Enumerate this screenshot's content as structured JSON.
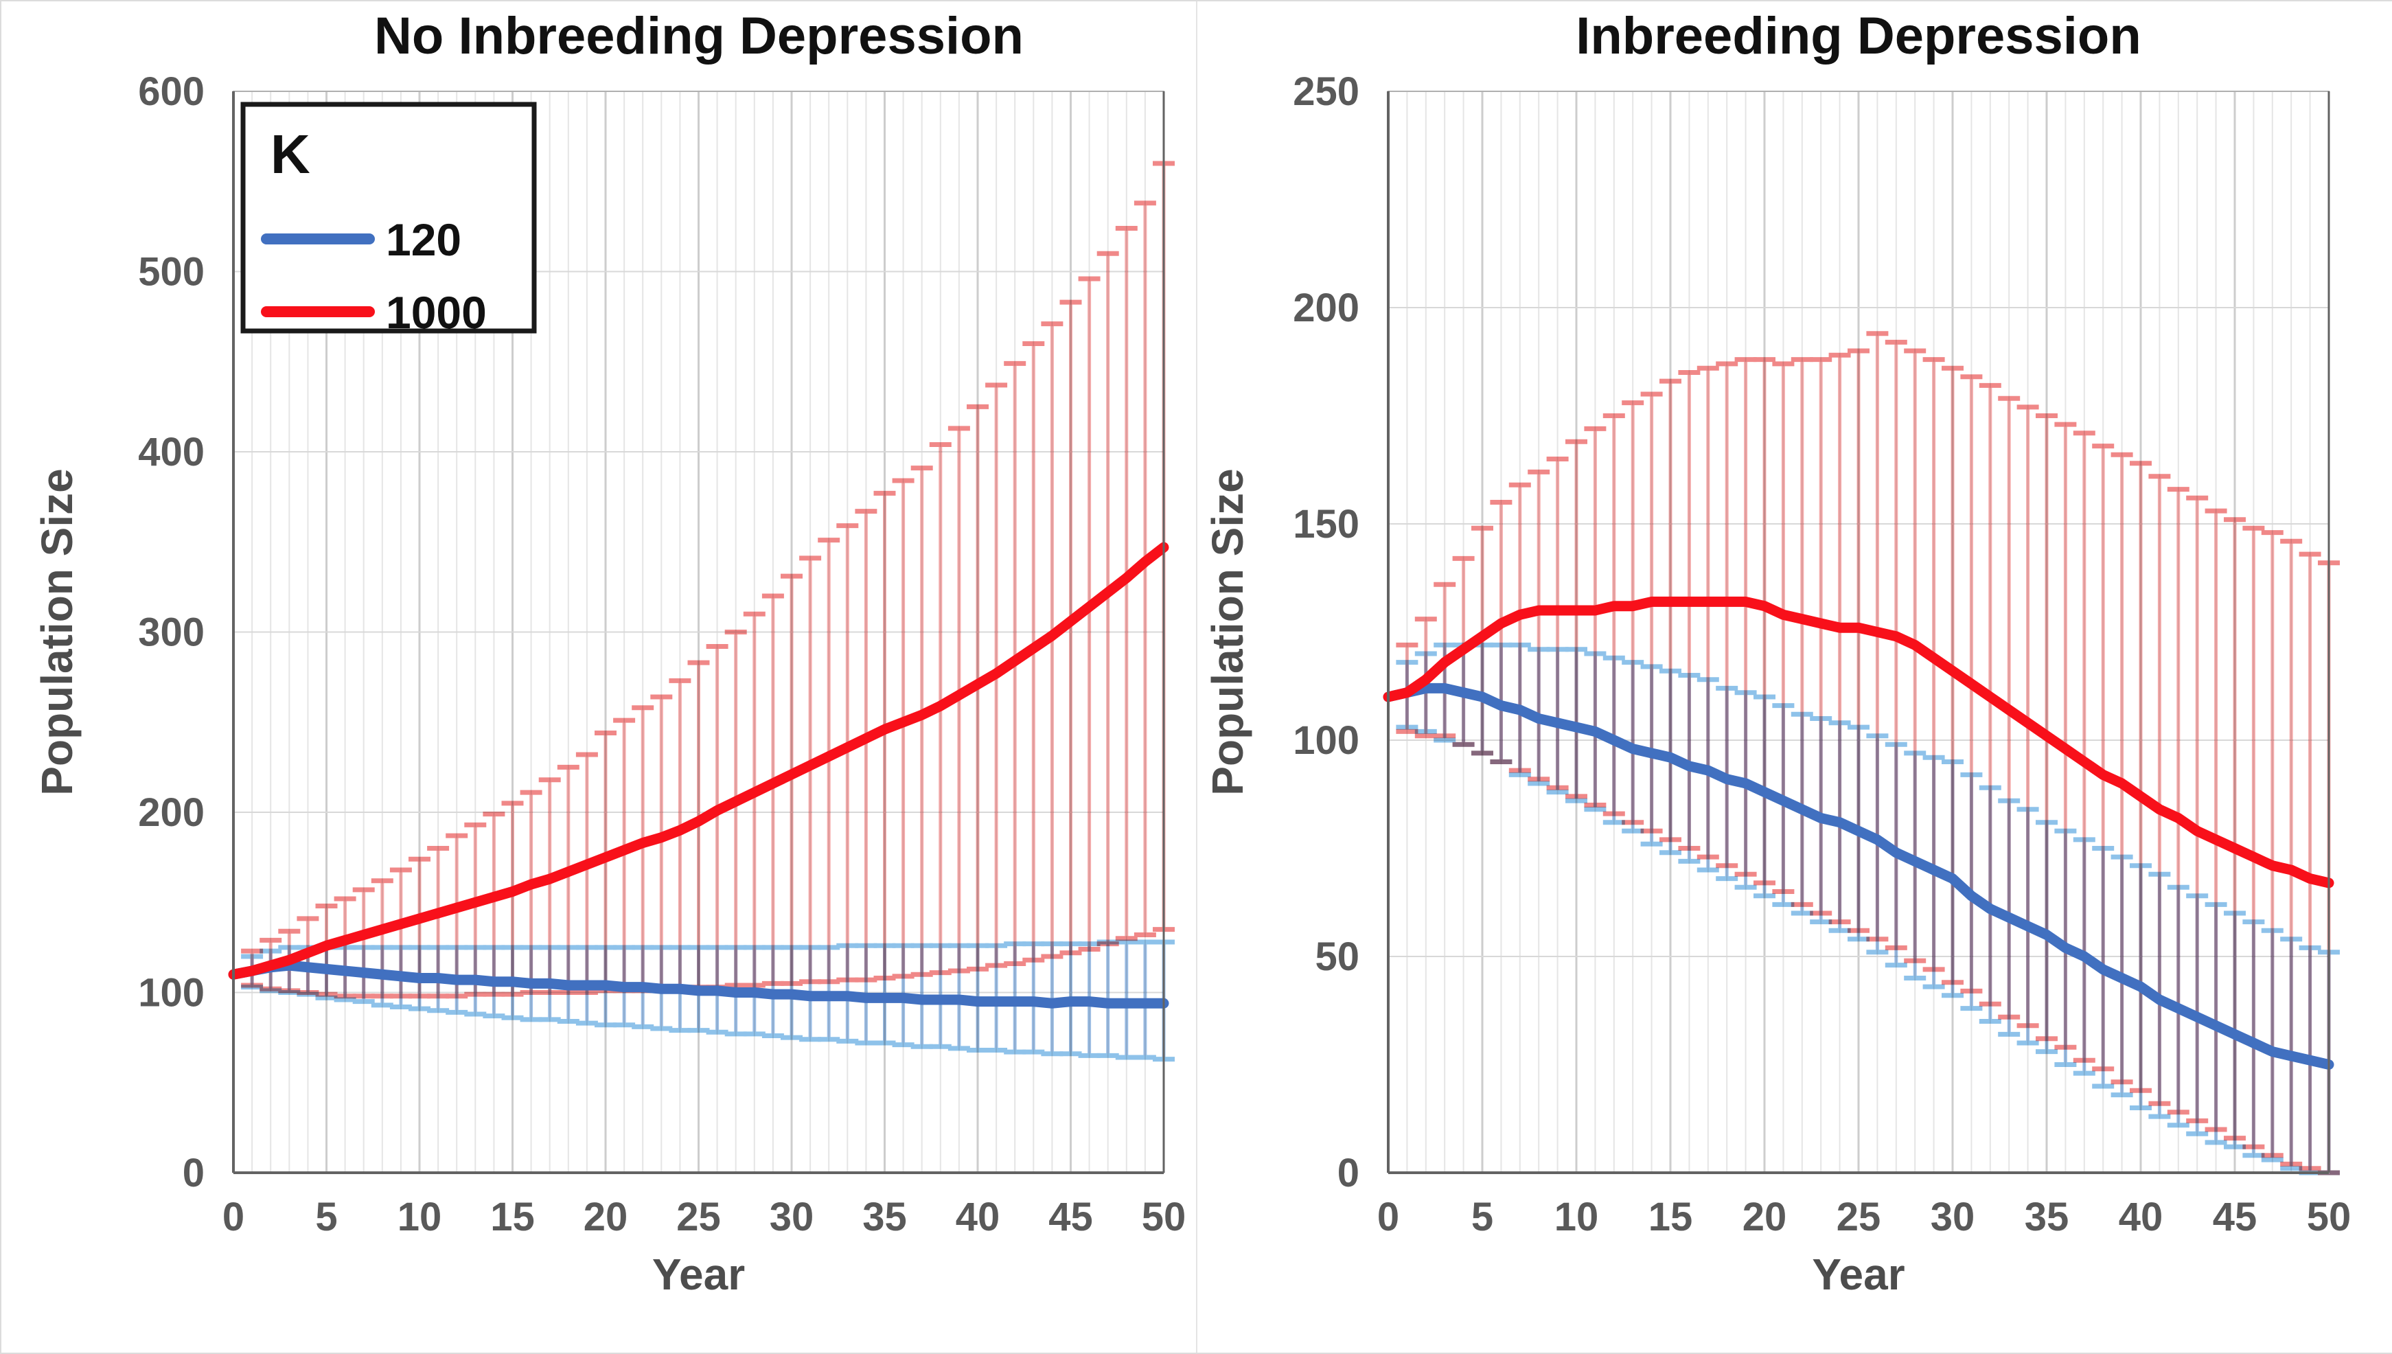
{
  "figure": {
    "background": "#FFFFFF",
    "panel_border": "#DCDCDC"
  },
  "colors": {
    "blue_line": "#4170C0",
    "red_line": "#F8101A",
    "blue_err_shaft": "#9DBFE6",
    "blue_err_cap": "#8EC2EA",
    "red_err_shaft": "#F6ACAC",
    "red_err_cap": "#F08888",
    "grid_minor": "#E5E5E5",
    "grid_major": "#CDCDCD",
    "grid_horizontal": "#D8D8D8",
    "frame_light": "#B0B0B0",
    "axis_dark": "#636363",
    "tick_text": "#595959",
    "axis_label_text": "#4D4D4D",
    "title_text": "#111111",
    "legend_border": "#1A1A1A"
  },
  "legend": {
    "title": "K",
    "items": [
      {
        "label": "120",
        "color_key": "blue_line"
      },
      {
        "label": "1000",
        "color_key": "red_line"
      }
    ]
  },
  "years": [
    0,
    1,
    2,
    3,
    4,
    5,
    6,
    7,
    8,
    9,
    10,
    11,
    12,
    13,
    14,
    15,
    16,
    17,
    18,
    19,
    20,
    21,
    22,
    23,
    24,
    25,
    26,
    27,
    28,
    29,
    30,
    31,
    32,
    33,
    34,
    35,
    36,
    37,
    38,
    39,
    40,
    41,
    42,
    43,
    44,
    45,
    46,
    47,
    48,
    49,
    50
  ],
  "chart_data": [
    {
      "type": "line",
      "title": "No Inbreeding Depression",
      "xlabel": "Year",
      "ylabel": "Population Size",
      "xlim": [
        0,
        50
      ],
      "ylim": [
        0,
        600
      ],
      "x_ticks": [
        0,
        5,
        10,
        15,
        20,
        25,
        30,
        35,
        40,
        45,
        50
      ],
      "y_ticks": [
        0,
        100,
        200,
        300,
        400,
        500,
        600
      ],
      "grid": true,
      "legend_position": "upper-left-inside",
      "error_bars": true,
      "series": [
        {
          "name": "120",
          "color_key": "blue",
          "y": [
            110,
            112,
            114,
            115,
            114,
            113,
            112,
            111,
            110,
            109,
            108,
            108,
            107,
            107,
            106,
            106,
            105,
            105,
            104,
            104,
            104,
            103,
            103,
            102,
            102,
            101,
            101,
            100,
            100,
            99,
            99,
            98,
            98,
            98,
            97,
            97,
            97,
            96,
            96,
            96,
            95,
            95,
            95,
            95,
            94,
            95,
            95,
            94,
            94,
            94,
            94
          ],
          "hi": [
            null,
            120,
            123,
            125,
            125,
            125,
            125,
            125,
            125,
            125,
            125,
            125,
            125,
            125,
            125,
            125,
            125,
            125,
            125,
            125,
            125,
            125,
            125,
            125,
            125,
            125,
            125,
            125,
            125,
            125,
            125,
            125,
            125,
            126,
            126,
            126,
            126,
            126,
            126,
            126,
            126,
            126,
            127,
            127,
            127,
            127,
            127,
            128,
            128,
            128,
            128
          ],
          "lo": [
            null,
            103,
            101,
            100,
            99,
            97,
            96,
            95,
            93,
            92,
            91,
            90,
            89,
            88,
            87,
            86,
            85,
            85,
            84,
            83,
            82,
            82,
            81,
            80,
            79,
            79,
            78,
            77,
            77,
            76,
            75,
            74,
            74,
            73,
            72,
            72,
            71,
            70,
            70,
            69,
            68,
            68,
            67,
            67,
            66,
            66,
            65,
            65,
            64,
            64,
            63
          ]
        },
        {
          "name": "1000",
          "color_key": "red",
          "y": [
            110,
            112,
            115,
            118,
            122,
            126,
            129,
            132,
            135,
            138,
            141,
            144,
            147,
            150,
            153,
            156,
            160,
            163,
            167,
            171,
            175,
            179,
            183,
            186,
            190,
            195,
            201,
            206,
            211,
            216,
            221,
            226,
            231,
            236,
            241,
            246,
            250,
            254,
            259,
            265,
            271,
            277,
            284,
            291,
            298,
            306,
            314,
            322,
            330,
            339,
            347
          ],
          "hi": [
            null,
            123,
            129,
            134,
            141,
            148,
            152,
            157,
            162,
            168,
            174,
            180,
            187,
            193,
            199,
            205,
            211,
            218,
            225,
            232,
            244,
            251,
            258,
            264,
            273,
            283,
            292,
            300,
            310,
            320,
            331,
            341,
            351,
            359,
            367,
            377,
            384,
            391,
            404,
            413,
            425,
            437,
            449,
            460,
            471,
            483,
            496,
            510,
            524,
            538,
            560
          ],
          "lo": [
            null,
            104,
            102,
            101,
            100,
            99,
            98,
            98,
            98,
            98,
            98,
            98,
            98,
            99,
            99,
            99,
            100,
            100,
            100,
            100,
            101,
            101,
            101,
            102,
            102,
            103,
            103,
            104,
            104,
            105,
            105,
            106,
            106,
            107,
            107,
            108,
            109,
            110,
            111,
            112,
            113,
            115,
            116,
            118,
            120,
            122,
            124,
            127,
            130,
            132,
            135
          ]
        }
      ]
    },
    {
      "type": "line",
      "title": "Inbreeding Depression",
      "xlabel": "Year",
      "ylabel": "Population Size",
      "xlim": [
        0,
        50
      ],
      "ylim": [
        0,
        250
      ],
      "x_ticks": [
        0,
        5,
        10,
        15,
        20,
        25,
        30,
        35,
        40,
        45,
        50
      ],
      "y_ticks": [
        0,
        50,
        100,
        150,
        200,
        250
      ],
      "grid": true,
      "legend_position": "none",
      "error_bars": true,
      "series": [
        {
          "name": "120",
          "color_key": "blue",
          "y": [
            110,
            111,
            112,
            112,
            111,
            110,
            108,
            107,
            105,
            104,
            103,
            102,
            100,
            98,
            97,
            96,
            94,
            93,
            91,
            90,
            88,
            86,
            84,
            82,
            81,
            79,
            77,
            74,
            72,
            70,
            68,
            64,
            61,
            59,
            57,
            55,
            52,
            50,
            47,
            45,
            43,
            40,
            38,
            36,
            34,
            32,
            30,
            28,
            27,
            26,
            25
          ],
          "hi": [
            null,
            118,
            120,
            122,
            122,
            122,
            122,
            122,
            121,
            121,
            121,
            120,
            119,
            118,
            117,
            116,
            115,
            114,
            112,
            111,
            110,
            108,
            106,
            105,
            104,
            103,
            101,
            99,
            97,
            96,
            95,
            92,
            89,
            86,
            84,
            81,
            79,
            77,
            75,
            73,
            71,
            69,
            66,
            64,
            62,
            60,
            58,
            56,
            54,
            52,
            51
          ],
          "lo": [
            null,
            103,
            102,
            100,
            99,
            97,
            95,
            92,
            90,
            88,
            86,
            84,
            81,
            79,
            76,
            74,
            72,
            70,
            68,
            66,
            64,
            62,
            60,
            58,
            56,
            54,
            51,
            48,
            45,
            43,
            41,
            38,
            35,
            32,
            30,
            28,
            25,
            23,
            20,
            18,
            15,
            13,
            11,
            9,
            7,
            6,
            4,
            3,
            1,
            0,
            0
          ]
        },
        {
          "name": "1000",
          "color_key": "red",
          "y": [
            110,
            111,
            114,
            118,
            121,
            124,
            127,
            129,
            130,
            130,
            130,
            130,
            131,
            131,
            132,
            132,
            132,
            132,
            132,
            132,
            131,
            129,
            128,
            127,
            126,
            126,
            125,
            124,
            122,
            119,
            116,
            113,
            110,
            107,
            104,
            101,
            98,
            95,
            92,
            90,
            87,
            84,
            82,
            79,
            77,
            75,
            73,
            71,
            70,
            68,
            67
          ],
          "hi": [
            null,
            122,
            128,
            136,
            142,
            149,
            155,
            159,
            162,
            165,
            169,
            172,
            175,
            178,
            180,
            183,
            185,
            186,
            187,
            188,
            188,
            187,
            188,
            188,
            189,
            190,
            194,
            192,
            190,
            188,
            186,
            184,
            182,
            179,
            177,
            175,
            173,
            171,
            168,
            166,
            164,
            161,
            158,
            156,
            153,
            151,
            149,
            148,
            146,
            143,
            141
          ],
          "lo": [
            null,
            102,
            101,
            101,
            99,
            97,
            95,
            93,
            91,
            89,
            87,
            85,
            83,
            81,
            79,
            77,
            75,
            73,
            71,
            69,
            67,
            65,
            62,
            60,
            58,
            56,
            54,
            52,
            49,
            47,
            44,
            42,
            39,
            36,
            34,
            31,
            29,
            26,
            24,
            21,
            19,
            16,
            14,
            12,
            10,
            8,
            6,
            4,
            2,
            1,
            0
          ]
        }
      ]
    }
  ]
}
